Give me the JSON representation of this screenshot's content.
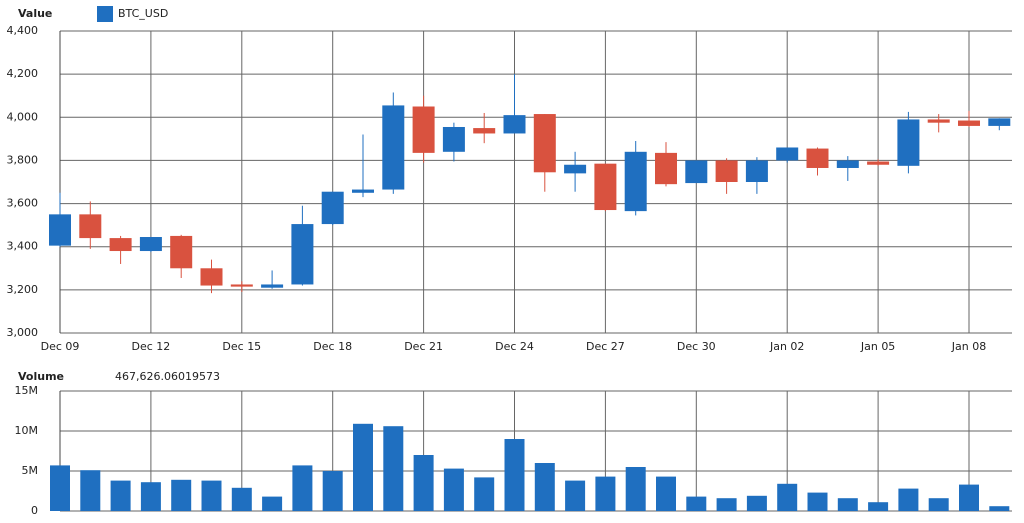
{
  "chart_data": [
    {
      "type": "candlestick",
      "title": "Value",
      "categories": [
        "Dec 09",
        null,
        null,
        "Dec 12",
        null,
        null,
        "Dec 15",
        null,
        null,
        "Dec 18",
        null,
        null,
        "Dec 21",
        null,
        null,
        "Dec 24",
        null,
        null,
        "Dec 27",
        null,
        null,
        "Dec 30",
        null,
        null,
        "Jan 02",
        null,
        null,
        "Jan 05",
        null,
        null,
        "Jan 08",
        null
      ],
      "series": [
        {
          "name": "BTC_USD",
          "color": "#1f6fc0",
          "down_color": "#d9523f",
          "open": [
            3405,
            3550,
            3440,
            3380,
            3450,
            3300,
            3225,
            3210,
            3225,
            3505,
            3650,
            3665,
            4050,
            3840,
            3950,
            3925,
            4015,
            3740,
            3785,
            3565,
            3835,
            3695,
            3800,
            3700,
            3800,
            3855,
            3765,
            3795,
            3775,
            3990,
            3985,
            3960
          ],
          "high": [
            3650,
            3610,
            3450,
            3445,
            3455,
            3340,
            3240,
            3290,
            3590,
            3655,
            3920,
            4115,
            4100,
            3975,
            4020,
            4200,
            4015,
            3840,
            3785,
            3890,
            3885,
            3800,
            3810,
            3815,
            3860,
            3860,
            3820,
            3805,
            4025,
            4015,
            4030,
            3995
          ],
          "low": [
            3400,
            3390,
            3320,
            3375,
            3255,
            3185,
            3190,
            3205,
            3220,
            3500,
            3630,
            3645,
            3790,
            3795,
            3880,
            3925,
            3655,
            3655,
            3565,
            3545,
            3680,
            3695,
            3645,
            3645,
            3790,
            3730,
            3705,
            3775,
            3740,
            3930,
            3955,
            3940
          ],
          "close": [
            3550,
            3440,
            3380,
            3445,
            3300,
            3220,
            3215,
            3225,
            3505,
            3655,
            3665,
            4055,
            3835,
            3955,
            3925,
            4010,
            3745,
            3780,
            3570,
            3840,
            3690,
            3800,
            3700,
            3800,
            3860,
            3765,
            3800,
            3780,
            3990,
            3975,
            3960,
            3995
          ]
        }
      ],
      "ylim": [
        3000,
        4400
      ],
      "yticks": [
        {
          "value": 3000,
          "label": "3,000"
        },
        {
          "value": 3200,
          "label": "3,200"
        },
        {
          "value": 3400,
          "label": "3,400"
        },
        {
          "value": 3600,
          "label": "3,600"
        },
        {
          "value": 3800,
          "label": "3,800"
        },
        {
          "value": 4000,
          "label": "4,000"
        },
        {
          "value": 4200,
          "label": "4,200"
        },
        {
          "value": 4400,
          "label": "4,400"
        }
      ],
      "grid": true
    },
    {
      "type": "bar",
      "title": "Volume",
      "annotation": "467,626.06019573",
      "color": "#1f6fc0",
      "values": [
        5700000,
        5100000,
        3800000,
        3600000,
        3900000,
        3800000,
        2900000,
        1800000,
        5700000,
        5000000,
        10900000,
        10600000,
        7000000,
        5300000,
        4200000,
        9000000,
        6000000,
        3800000,
        4300000,
        5500000,
        4300000,
        1800000,
        1600000,
        1900000,
        3400000,
        2300000,
        1600000,
        1100000,
        2800000,
        1600000,
        3300000,
        600000
      ],
      "ylim": [
        0,
        15000000
      ],
      "yticks": [
        {
          "value": 0,
          "label": "0"
        },
        {
          "value": 5000000,
          "label": "5M"
        },
        {
          "value": 10000000,
          "label": "10M"
        },
        {
          "value": 15000000,
          "label": "15M"
        }
      ],
      "grid": true
    }
  ]
}
